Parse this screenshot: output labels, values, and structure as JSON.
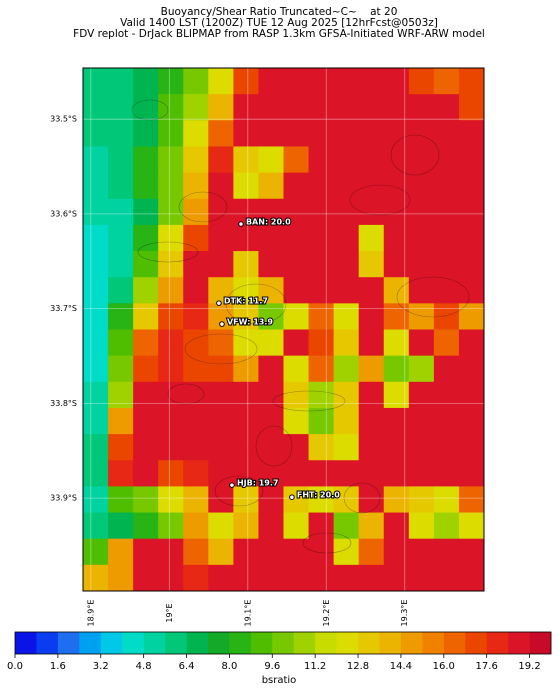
{
  "header": {
    "title_lines": [
      "Buoyancy/Shear Ratio Truncated~C~    at 20",
      "Valid 1400 LST (1200Z) TUE 12 Aug 2025 [12hrFcst@0503z]",
      "FDV replot - DrJack BLIPMAP from RASP 1.3km GFSA-Initiated WRF-ARW model"
    ]
  },
  "map": {
    "lat_range": [
      -33.998,
      -33.446
    ],
    "lon_range": [
      18.89,
      19.401
    ],
    "lat_ticks": [
      {
        "value": -33.5,
        "label": "33.5°S"
      },
      {
        "value": -33.6,
        "label": "33.6°S"
      },
      {
        "value": -33.7,
        "label": "33.7°S"
      },
      {
        "value": -33.8,
        "label": "33.8°S"
      },
      {
        "value": -33.9,
        "label": "33.9°S"
      }
    ],
    "lon_ticks": [
      {
        "value": 18.9,
        "label": "18.9°E"
      },
      {
        "value": 19.0,
        "label": "19°E"
      },
      {
        "value": 19.1,
        "label": "19.1°E"
      },
      {
        "value": 19.2,
        "label": "19.2°E"
      },
      {
        "value": 19.3,
        "label": "19.3°E"
      }
    ],
    "stations": [
      {
        "label": "BAN: 20.0",
        "lat": -33.6107,
        "lon": 19.0913
      },
      {
        "label": "DTK: 11.7",
        "lat": -33.6942,
        "lon": 19.0632
      },
      {
        "label": "VFW: 13.9",
        "lat": -33.7163,
        "lon": 19.0671
      },
      {
        "label": "HJB: 19.7",
        "lat": -33.8863,
        "lon": 19.0798
      },
      {
        "label": "FHT: 20.0",
        "lat": -33.899,
        "lon": 19.1562
      }
    ],
    "grid": [
      [
        6,
        6,
        7,
        8,
        10,
        12,
        17,
        19,
        19,
        19,
        19,
        19,
        19,
        17,
        16,
        17
      ],
      [
        6,
        6,
        7,
        9,
        11,
        14,
        19,
        19,
        19,
        19,
        19,
        19,
        19,
        19,
        19,
        17
      ],
      [
        6,
        6,
        7,
        9,
        12,
        16,
        19,
        19,
        19,
        19,
        19,
        19,
        19,
        19,
        19,
        19
      ],
      [
        5,
        6,
        8,
        10,
        13,
        18,
        13,
        12,
        16,
        19,
        19,
        19,
        19,
        19,
        19,
        19
      ],
      [
        5,
        6,
        8,
        10,
        14,
        19,
        12,
        14,
        19,
        19,
        19,
        19,
        19,
        19,
        19,
        19
      ],
      [
        5,
        5,
        7,
        10,
        15,
        19,
        19,
        19,
        19,
        19,
        19,
        19,
        19,
        19,
        19,
        19
      ],
      [
        4,
        5,
        8,
        12,
        17,
        19,
        19,
        19,
        19,
        19,
        19,
        12,
        19,
        19,
        19,
        19
      ],
      [
        4,
        5,
        9,
        13,
        19,
        19,
        13,
        19,
        19,
        19,
        19,
        13,
        19,
        19,
        19,
        19
      ],
      [
        4,
        6,
        11,
        15,
        19,
        14,
        12,
        14,
        19,
        19,
        19,
        19,
        14,
        19,
        19,
        19
      ],
      [
        4,
        8,
        13,
        17,
        18,
        15,
        13,
        10,
        12,
        16,
        12,
        19,
        16,
        15,
        17,
        15
      ],
      [
        4,
        9,
        16,
        18,
        17,
        16,
        12,
        12,
        19,
        17,
        13,
        19,
        12,
        19,
        16,
        19
      ],
      [
        4,
        10,
        17,
        18,
        17,
        17,
        15,
        19,
        12,
        16,
        11,
        15,
        10,
        11,
        19,
        19
      ],
      [
        5,
        11,
        19,
        19,
        19,
        19,
        19,
        19,
        13,
        11,
        13,
        19,
        12,
        19,
        19,
        19
      ],
      [
        5,
        15,
        19,
        19,
        19,
        19,
        19,
        19,
        12,
        10,
        13,
        19,
        19,
        19,
        19,
        19
      ],
      [
        6,
        17,
        19,
        19,
        19,
        19,
        19,
        19,
        19,
        13,
        12,
        19,
        19,
        19,
        19,
        19
      ],
      [
        6,
        18,
        19,
        17,
        18,
        19,
        19,
        19,
        19,
        19,
        19,
        19,
        19,
        19,
        19,
        19
      ],
      [
        5,
        9,
        10,
        12,
        14,
        19,
        13,
        19,
        13,
        12,
        13,
        19,
        14,
        13,
        12,
        16
      ],
      [
        6,
        7,
        8,
        10,
        15,
        12,
        14,
        19,
        12,
        19,
        10,
        14,
        19,
        12,
        11,
        12
      ],
      [
        9,
        15,
        19,
        19,
        16,
        14,
        19,
        19,
        19,
        19,
        12,
        16,
        19,
        19,
        19,
        19
      ],
      [
        14,
        15,
        19,
        19,
        18,
        19,
        19,
        19,
        19,
        19,
        19,
        19,
        19,
        19,
        19,
        19
      ]
    ]
  },
  "colorbar": {
    "label": "bsratio",
    "clim": [
      0,
      20
    ],
    "colors": [
      "#0a14e6",
      "#0a3cf0",
      "#1e6ef0",
      "#00a0f0",
      "#00c8e6",
      "#00dcc8",
      "#00d2a0",
      "#00c878",
      "#00b450",
      "#14aa28",
      "#28b414",
      "#50be00",
      "#78c800",
      "#a0d200",
      "#c8dc00",
      "#dcdc00",
      "#e6c800",
      "#ebb400",
      "#ee9b00",
      "#f08200",
      "#ee6400",
      "#eb4600",
      "#e62814",
      "#dc1428",
      "#c80a28"
    ],
    "ticks": [
      {
        "value": 0,
        "label": "0.0"
      },
      1.6,
      3.2,
      4.8,
      6.4,
      {
        "value": 8,
        "label": "8.0"
      },
      9.6,
      11.2,
      12.8,
      14.4,
      {
        "value": 16,
        "label": "16.0"
      },
      17.6,
      19.2
    ]
  }
}
